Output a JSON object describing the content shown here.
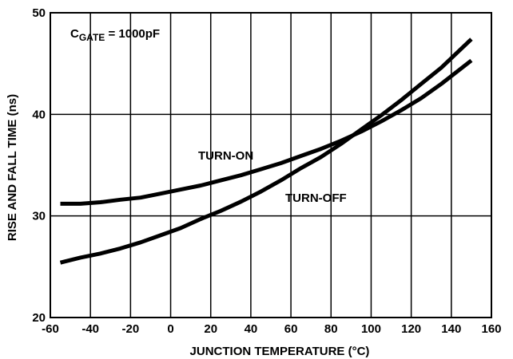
{
  "chart_data": {
    "type": "line",
    "title": "",
    "xlabel": "JUNCTION TEMPERATURE (°C)",
    "ylabel": "RISE AND FALL TIME (ns)",
    "xlim": [
      -60,
      160
    ],
    "ylim": [
      20,
      50
    ],
    "x_ticks": [
      -60,
      -40,
      -20,
      0,
      20,
      40,
      60,
      80,
      100,
      120,
      140,
      160
    ],
    "y_ticks": [
      20,
      30,
      40,
      50
    ],
    "x_tick_labels": [
      "-60",
      "-40",
      "-20",
      "0",
      "20",
      "40",
      "60",
      "80",
      "100",
      "120",
      "140",
      "160"
    ],
    "y_tick_labels": [
      "20",
      "30",
      "40",
      "50"
    ],
    "grid": true,
    "annotation": {
      "main": "C",
      "sub": "GATE",
      "rest": " = 1000pF"
    },
    "series": [
      {
        "name": "TURN-ON",
        "x": [
          -55,
          -45,
          -35,
          -25,
          -15,
          -5,
          5,
          15,
          25,
          35,
          45,
          55,
          65,
          75,
          85,
          95,
          105,
          115,
          125,
          135,
          150
        ],
        "y": [
          31.2,
          31.2,
          31.35,
          31.6,
          31.8,
          32.2,
          32.6,
          33.0,
          33.5,
          34.0,
          34.6,
          35.2,
          35.9,
          36.6,
          37.4,
          38.3,
          39.3,
          40.4,
          41.6,
          43.0,
          45.3
        ]
      },
      {
        "name": "TURN-OFF",
        "x": [
          -55,
          -45,
          -35,
          -25,
          -15,
          -5,
          5,
          15,
          25,
          35,
          45,
          55,
          65,
          75,
          85,
          95,
          105,
          115,
          125,
          135,
          150
        ],
        "y": [
          25.4,
          25.9,
          26.3,
          26.8,
          27.4,
          28.1,
          28.8,
          29.7,
          30.5,
          31.4,
          32.4,
          33.5,
          34.7,
          35.8,
          37.1,
          38.5,
          39.9,
          41.4,
          43.0,
          44.6,
          47.4
        ]
      }
    ]
  }
}
